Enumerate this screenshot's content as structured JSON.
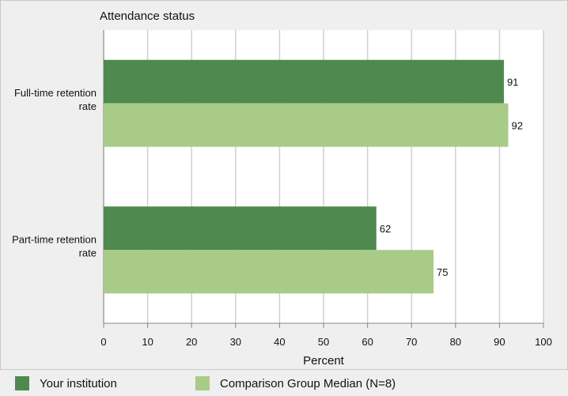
{
  "chart_data": {
    "type": "bar",
    "orientation": "horizontal",
    "title": "Attendance status",
    "xlabel": "Percent",
    "ylabel": "",
    "xlim": [
      0,
      100
    ],
    "xticks": [
      0,
      10,
      20,
      30,
      40,
      50,
      60,
      70,
      80,
      90,
      100
    ],
    "categories": [
      "Full-time retention rate",
      "Part-time retention rate"
    ],
    "series": [
      {
        "name": "Your institution",
        "values": [
          91,
          62
        ],
        "color": "#4e8a4e"
      },
      {
        "name": "Comparison Group Median (N=8)",
        "values": [
          92,
          75
        ],
        "color": "#a9cb88"
      }
    ],
    "grid": true,
    "legend_position": "bottom"
  },
  "colors": {
    "background": "#efefef",
    "plot_background": "#ffffff",
    "grid": "#d0d0d0",
    "axis": "#888888"
  }
}
